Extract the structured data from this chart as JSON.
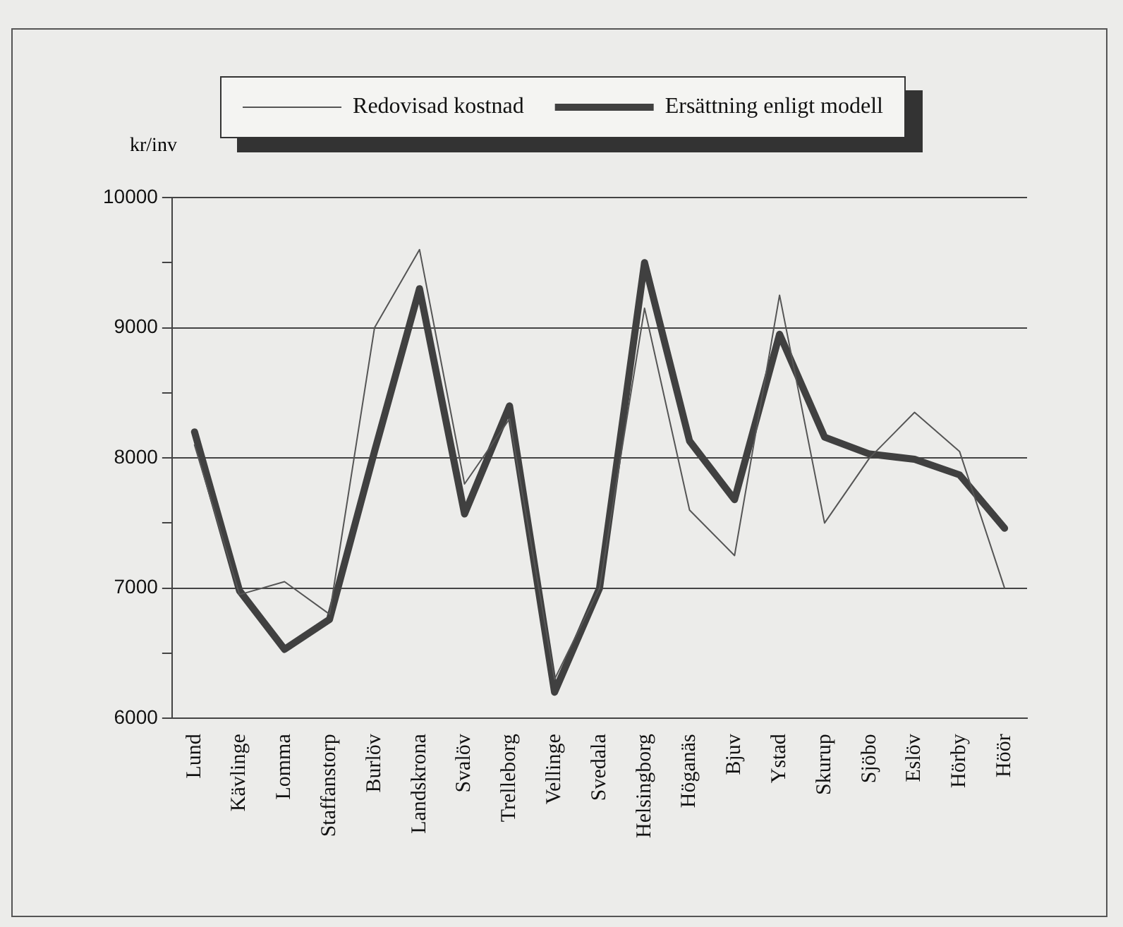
{
  "chart_data": {
    "type": "line",
    "ylabel": "kr/inv",
    "categories": [
      "Lund",
      "Kävlinge",
      "Lomma",
      "Staffanstorp",
      "Burlöv",
      "Landskrona",
      "Svalöv",
      "Trelleborg",
      "Vellinge",
      "Svedala",
      "Helsingborg",
      "Höganäs",
      "Bjuv",
      "Ystad",
      "Skurup",
      "Sjöbo",
      "Eslöv",
      "Hörby",
      "Höör"
    ],
    "series": [
      {
        "name": "Redovisad kostnad",
        "color": "#555555",
        "values": [
          8100,
          6950,
          7050,
          6800,
          9000,
          9600,
          7800,
          8300,
          6300,
          7000,
          9150,
          7600,
          7250,
          9250,
          7500,
          8000,
          8350,
          8050,
          7000
        ]
      },
      {
        "name": "Ersättning enligt modell",
        "color": "#404040",
        "values": [
          8200,
          6980,
          6530,
          6760,
          8050,
          9300,
          7570,
          8400,
          6200,
          7000,
          9500,
          8130,
          7680,
          8950,
          8160,
          8030,
          7990,
          7870,
          7460
        ]
      }
    ],
    "ylim": [
      6000,
      10000
    ],
    "yticks": [
      6000,
      {
        "value": 6500,
        "label": null
      },
      7000,
      {
        "value": 7500,
        "label": null
      },
      8000,
      {
        "value": 8500,
        "label": null
      },
      9000,
      {
        "value": 9500,
        "label": null
      },
      10000
    ],
    "grid": "y",
    "legend": "top",
    "marker": "none",
    "line_style": "solid"
  }
}
